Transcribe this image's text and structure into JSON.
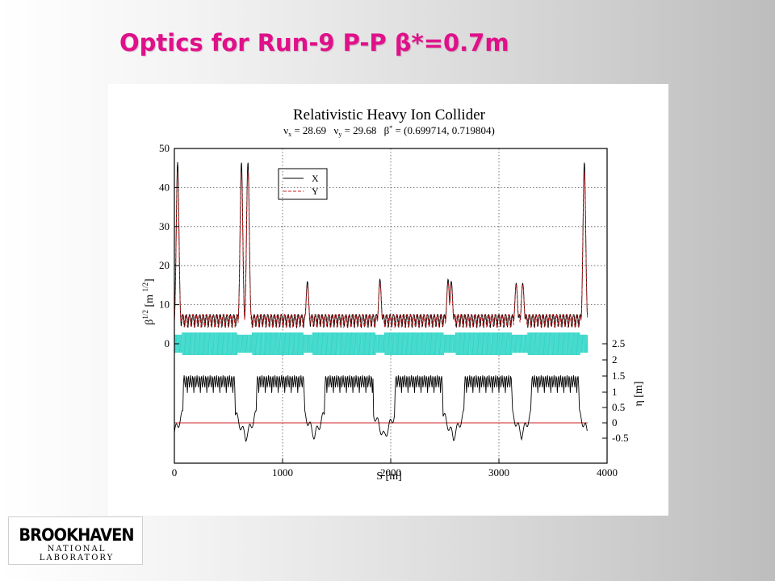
{
  "slide": {
    "title": "Optics for Run-9  P-P  β*=0.7m"
  },
  "logo": {
    "line1": "BROOKHAVEN",
    "line2": "NATIONAL LABORATORY"
  },
  "chart_data": {
    "type": "line",
    "title": "Relativistic Heavy Ion Collider",
    "subtitle": {
      "nux_sym": "ν",
      "nux_sub": "x",
      "nux_val": " = 28.69",
      "nuy_sym": "ν",
      "nuy_sub": "y",
      "nuy_val": " = 29.68",
      "beta_sym": "β",
      "beta_sup": "*",
      "beta_val": " = (0.699714, 0.719804)"
    },
    "xlabel": "S [m]",
    "ylabel_left": {
      "main": "β",
      "sup": "1/2",
      "unit_open": " [m ",
      "unit_sup": "1/2",
      "unit_close": "]"
    },
    "ylabel_right": "η [m]",
    "xlim": [
      0,
      4000
    ],
    "ylim_beta": [
      0,
      50
    ],
    "ylim_eta": [
      -0.5,
      2.5
    ],
    "x_ticks": [
      "0",
      "1000",
      "2000",
      "3000",
      "4000"
    ],
    "beta_ticks": [
      "0",
      "10",
      "20",
      "30",
      "40",
      "50"
    ],
    "eta_ticks": [
      "-0.5",
      "0",
      "0.5",
      "1",
      "1.5",
      "2",
      "2.5"
    ],
    "legend": {
      "position": "top-left",
      "entries": [
        "X",
        "Y"
      ]
    },
    "grid": true,
    "colors": {
      "x": "#000000",
      "y": "#cc2222",
      "eta_band": "#33d6c8",
      "eta_zero": "#cc2222",
      "grid": "#555555"
    },
    "peaks": [
      {
        "s": 30,
        "beta_x": 43.5,
        "beta_y": 41
      },
      {
        "s": 620,
        "beta_x": 43.5,
        "beta_y": 41
      },
      {
        "s": 680,
        "beta_x": 43.5,
        "beta_y": 41
      },
      {
        "s": 1230,
        "beta_x": 13,
        "beta_y": 12
      },
      {
        "s": 1900,
        "beta_x": 13.5,
        "beta_y": 12.5
      },
      {
        "s": 2530,
        "beta_x": 13.5,
        "beta_y": 12.5
      },
      {
        "s": 2560,
        "beta_x": 13,
        "beta_y": 12
      },
      {
        "s": 3160,
        "beta_x": 12.5,
        "beta_y": 12
      },
      {
        "s": 3220,
        "beta_x": 12.5,
        "beta_y": 12
      },
      {
        "s": 3790,
        "beta_x": 43.5,
        "beta_y": 41
      }
    ],
    "arc_beta_range": [
      4,
      7.5
    ],
    "arcs": [
      {
        "s_start": 80,
        "s_end": 560,
        "eta_max": 1.55
      },
      {
        "s_start": 760,
        "s_end": 1200,
        "eta_max": 1.55
      },
      {
        "s_start": 1390,
        "s_end": 1840,
        "eta_max": 1.55
      },
      {
        "s_start": 2040,
        "s_end": 2480,
        "eta_max": 1.55
      },
      {
        "s_start": 2680,
        "s_end": 3120,
        "eta_max": 1.55
      },
      {
        "s_start": 3300,
        "s_end": 3740,
        "eta_max": 1.55
      }
    ],
    "eta_min": -0.65
  }
}
